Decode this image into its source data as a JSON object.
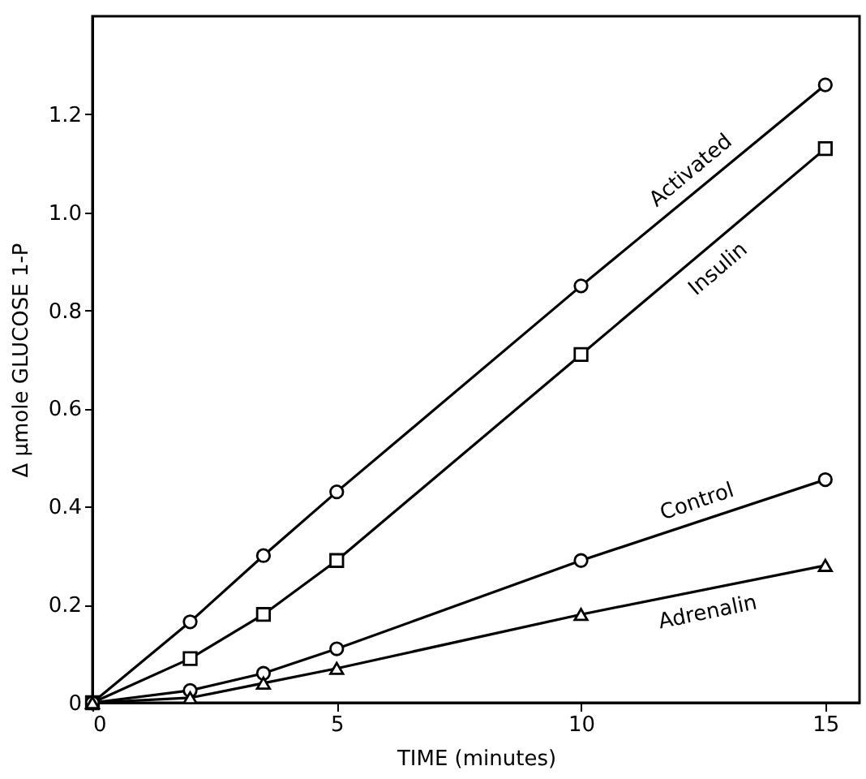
{
  "chart_data": {
    "type": "line",
    "xlabel": "TIME (minutes)",
    "ylabel": "Δ μmole GLUCOSE 1-P",
    "x": [
      0,
      2,
      3.5,
      5,
      10,
      15
    ],
    "series": [
      {
        "name": "Activated",
        "color": "#000000",
        "marker": "circle",
        "values": [
          0,
          0.165,
          0.3,
          0.43,
          0.85,
          1.26
        ]
      },
      {
        "name": "Insulin",
        "color": "#000000",
        "marker": "square",
        "values": [
          0,
          0.09,
          0.18,
          0.29,
          0.71,
          1.13
        ]
      },
      {
        "name": "Control",
        "color": "#000000",
        "marker": "circle",
        "values": [
          0,
          0.025,
          0.06,
          0.11,
          0.29,
          0.455
        ]
      },
      {
        "name": "Adrenalin",
        "color": "#000000",
        "marker": "triangle",
        "values": [
          0,
          0.01,
          0.04,
          0.07,
          0.18,
          0.28
        ]
      }
    ],
    "xlim": [
      0,
      15.7
    ],
    "xticks": [
      0,
      5,
      10,
      15
    ],
    "ylim": [
      0,
      1.4
    ],
    "yticks": [
      0,
      0.2,
      0.4,
      0.6,
      0.8,
      {
        "value": 1,
        "label": "1.0"
      },
      1.2
    ],
    "grid": false,
    "line_style": "solid"
  }
}
